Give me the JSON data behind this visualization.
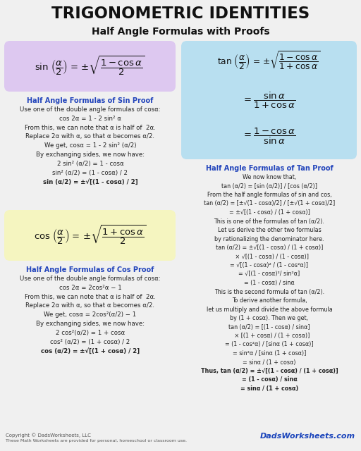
{
  "title": "TRIGONOMETRIC IDENTITIES",
  "subtitle": "Half Angle Formulas with Proofs",
  "bg_color": "#f0f0f0",
  "title_color": "#111111",
  "subtitle_color": "#111111",
  "sin_box_color": "#ddc8f0",
  "cos_box_color": "#f5f5c0",
  "tan_box_color": "#b8dff0",
  "proof_title_color": "#2244bb",
  "proof_text_color": "#222222",
  "formula_color": "#111111",
  "sin_proof_title": "Half Angle Formulas of Sin Proof",
  "sin_proof_lines": [
    "Use one of the double angle formulas of cosα:",
    "cos 2α = 1 - 2 sin² α",
    "From this, we can note that α is half of  2α.",
    "Replace 2α with α, so that α becomes α/2.",
    "We get, cosα = 1 - 2 sin² (α/2)",
    "By exchanging sides, we now have:",
    "2 sin² (α/2) = 1 - cosα",
    "sin² (α/2) = (1 - cosα) / 2",
    "sin (α/2) = ±√[(1 - cosα) / 2]"
  ],
  "cos_proof_title": "Half Angle Formulas of Cos Proof",
  "cos_proof_lines": [
    "Use one of the double angle formulas of cosα:",
    "cos 2α = 2cos²α − 1",
    "From this, we can note that α is half of  2α.",
    "Replace 2α with α, so that α becomes α/2.",
    "We get, cosα = 2cos²(α/2) − 1",
    "By exchanging sides, we now have:",
    "2 cos²(α/2) = 1 + cosα",
    "cos² (α/2) = (1 + cosα) / 2",
    "cos (α/2) = ±√[(1 + cosα) / 2]"
  ],
  "tan_proof_title": "Half Angle Formulas of Tan Proof",
  "tan_proof_lines": [
    "We now know that,",
    "tan (α/2) = [sin (α/2)] / [cos (α/2)]",
    "From the half angle formulas of sin and cos,",
    "tan (α/2) = [±√(1 - cosα)/2] / [±√(1 + cosα)/2]",
    "= ±√[(1 - cosα) / (1 + cosα)]",
    "This is one of the formulas of tan (α/2).",
    "Let us derive the other two formulas",
    "by rationalizing the denominator here.",
    "tan (α/2) = ±√[(1 - cosα) / (1 + cosα)]",
    "   × √[(1 - cosα) / (1 - cosα)]",
    "= √[(1 - cosα)² / (1 - cos²α)]",
    "= √[(1 - cosα)²/ sin²α]",
    "= (1 - cosα) / sinα",
    "This is the second formula of tan (α/2).",
    "To derive another formula,",
    "let us multiply and divide the above formula",
    "by (1 + cosα). Then we get,",
    "tan (α/2) = [(1 - cosα) / sinα]",
    "   × [(1 + cosα) / (1 + cosα)]",
    "= (1 - cos²α) / [sinα (1 + cosα)]",
    "= sin²α / [sinα (1 + cosα)]",
    "= sinα / (1 + cosα)",
    "Thus, tan (α/2) = ±√[(1 - cosα) / (1 + cosα)]",
    "= (1 - cosα) / sinα",
    "= sinα / (1 + cosα)"
  ],
  "tan_bold_indices": [
    22,
    23,
    24
  ],
  "copyright_line1": "Copyright © DadsWorksheets, LLC",
  "copyright_line2": "These Math Worksheets are provided for personal, homeschool or classroom use.",
  "watermark": "DadsWorksheets.com"
}
